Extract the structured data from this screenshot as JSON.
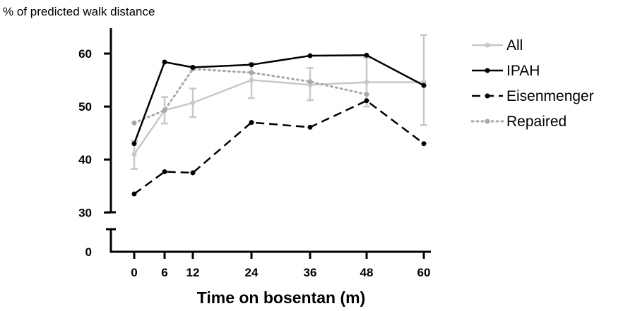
{
  "chart_data": {
    "type": "line",
    "ylabel": "% of predicted walk distance",
    "xlabel": "Time on bosentan (m)",
    "x": [
      0,
      6,
      12,
      24,
      36,
      48,
      60
    ],
    "x_ticks": [
      "0",
      "6",
      "12",
      "24",
      "36",
      "48",
      "60"
    ],
    "y_ticks": [
      "0",
      "30",
      "40",
      "50",
      "60"
    ],
    "y_axis_break": [
      0,
      30
    ],
    "ylim": [
      30,
      65
    ],
    "grid": false,
    "legend_position": "right",
    "series": [
      {
        "name": "All",
        "color": "#c8c8c8",
        "style": "solid",
        "values": [
          41,
          49.3,
          50.7,
          55,
          54.1,
          54.6,
          54.6
        ],
        "error_low": [
          38.2,
          46.8,
          48,
          51.6,
          51.2,
          50,
          46.5
        ],
        "error_high": [
          43.5,
          51.8,
          53.4,
          58.2,
          57.3,
          59.2,
          63.5
        ]
      },
      {
        "name": "IPAH",
        "color": "#000000",
        "style": "solid",
        "values": [
          43,
          58.4,
          57.4,
          57.9,
          59.6,
          59.7,
          54
        ]
      },
      {
        "name": "Eisenmenger",
        "color": "#000000",
        "style": "dashed",
        "values": [
          33.5,
          37.7,
          37.5,
          47,
          46.1,
          51.1,
          43
        ]
      },
      {
        "name": "Repaired",
        "color": "#a8a8a8",
        "style": "dotted",
        "values": [
          46.9,
          49.3,
          57.1,
          56.4,
          54.7,
          52.3,
          null
        ]
      }
    ]
  }
}
